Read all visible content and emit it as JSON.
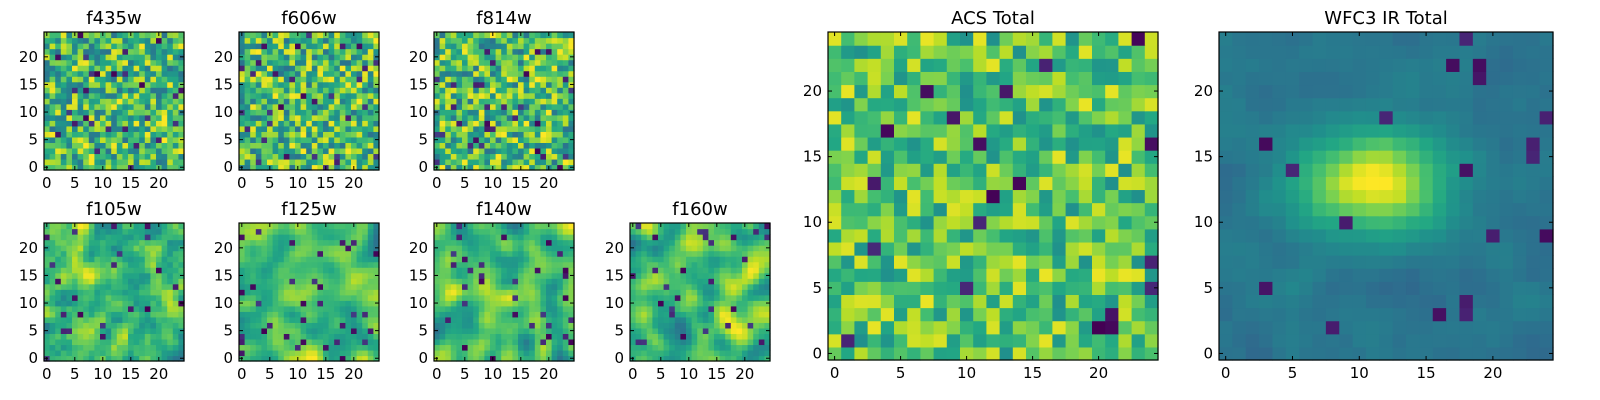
{
  "figure_title": "",
  "chart_data": [
    {
      "type": "heatmap",
      "id": "f435w",
      "title": "f435w",
      "size": 25,
      "seed": 11,
      "blur": 0,
      "mode": "noise",
      "x_ticks": [
        0,
        5,
        10,
        15,
        20
      ],
      "y_ticks": [
        0,
        5,
        10,
        15,
        20
      ],
      "x_tick_labels": [
        "0",
        "5",
        "10",
        "15",
        "20"
      ],
      "y_tick_labels": [
        "0",
        "5",
        "10",
        "15",
        "20"
      ],
      "colormap": "viridis"
    },
    {
      "type": "heatmap",
      "id": "f606w",
      "title": "f606w",
      "size": 25,
      "seed": 23,
      "blur": 0,
      "mode": "noise",
      "x_ticks": [
        0,
        5,
        10,
        15,
        20
      ],
      "y_ticks": [
        0,
        5,
        10,
        15,
        20
      ],
      "x_tick_labels": [
        "0",
        "5",
        "10",
        "15",
        "20"
      ],
      "y_tick_labels": [
        "0",
        "5",
        "10",
        "15",
        "20"
      ],
      "colormap": "viridis"
    },
    {
      "type": "heatmap",
      "id": "f814w",
      "title": "f814w",
      "size": 25,
      "seed": 37,
      "blur": 0,
      "mode": "noise",
      "x_ticks": [
        0,
        5,
        10,
        15,
        20
      ],
      "y_ticks": [
        0,
        5,
        10,
        15,
        20
      ],
      "x_tick_labels": [
        "0",
        "5",
        "10",
        "15",
        "20"
      ],
      "y_tick_labels": [
        "0",
        "5",
        "10",
        "15",
        "20"
      ],
      "colormap": "viridis"
    },
    {
      "type": "heatmap",
      "id": "f105w",
      "title": "f105w",
      "size": 25,
      "seed": 41,
      "blur": 1,
      "mode": "noise",
      "x_ticks": [
        0,
        5,
        10,
        15,
        20
      ],
      "y_ticks": [
        0,
        5,
        10,
        15,
        20
      ],
      "x_tick_labels": [
        "0",
        "5",
        "10",
        "15",
        "20"
      ],
      "y_tick_labels": [
        "0",
        "5",
        "10",
        "15",
        "20"
      ],
      "colormap": "viridis"
    },
    {
      "type": "heatmap",
      "id": "f125w",
      "title": "f125w",
      "size": 25,
      "seed": 53,
      "blur": 2,
      "mode": "noise",
      "x_ticks": [
        0,
        5,
        10,
        15,
        20
      ],
      "y_ticks": [
        0,
        5,
        10,
        15,
        20
      ],
      "x_tick_labels": [
        "0",
        "5",
        "10",
        "15",
        "20"
      ],
      "y_tick_labels": [
        "0",
        "5",
        "10",
        "15",
        "20"
      ],
      "colormap": "viridis"
    },
    {
      "type": "heatmap",
      "id": "f140w",
      "title": "f140w",
      "size": 25,
      "seed": 67,
      "blur": 2,
      "mode": "noise",
      "x_ticks": [
        0,
        5,
        10,
        15,
        20
      ],
      "y_ticks": [
        0,
        5,
        10,
        15,
        20
      ],
      "x_tick_labels": [
        "0",
        "5",
        "10",
        "15",
        "20"
      ],
      "y_tick_labels": [
        "0",
        "5",
        "10",
        "15",
        "20"
      ],
      "colormap": "viridis"
    },
    {
      "type": "heatmap",
      "id": "f160w",
      "title": "f160w",
      "size": 25,
      "seed": 79,
      "blur": 2,
      "mode": "noise",
      "x_ticks": [
        0,
        5,
        10,
        15,
        20
      ],
      "y_ticks": [
        0,
        5,
        10,
        15,
        20
      ],
      "x_tick_labels": [
        "0",
        "5",
        "10",
        "15",
        "20"
      ],
      "y_tick_labels": [
        "0",
        "5",
        "10",
        "15",
        "20"
      ],
      "colormap": "viridis"
    },
    {
      "type": "heatmap",
      "id": "acs-total",
      "title": "ACS Total",
      "size": 25,
      "seed": 97,
      "blur": 0,
      "mode": "acs",
      "x_ticks": [
        0,
        5,
        10,
        15,
        20
      ],
      "y_ticks": [
        0,
        5,
        10,
        15,
        20
      ],
      "x_tick_labels": [
        "0",
        "5",
        "10",
        "15",
        "20"
      ],
      "y_tick_labels": [
        "0",
        "5",
        "10",
        "15",
        "20"
      ],
      "colormap": "viridis"
    },
    {
      "type": "heatmap",
      "id": "wfc3-ir-total",
      "title": "WFC3 IR Total",
      "size": 25,
      "seed": 131,
      "blur": 1,
      "mode": "galaxy",
      "peak_x": 11,
      "peak_y": 13,
      "x_ticks": [
        0,
        5,
        10,
        15,
        20
      ],
      "y_ticks": [
        0,
        5,
        10,
        15,
        20
      ],
      "x_tick_labels": [
        "0",
        "5",
        "10",
        "15",
        "20"
      ],
      "y_tick_labels": [
        "0",
        "5",
        "10",
        "15",
        "20"
      ],
      "colormap": "viridis"
    }
  ]
}
